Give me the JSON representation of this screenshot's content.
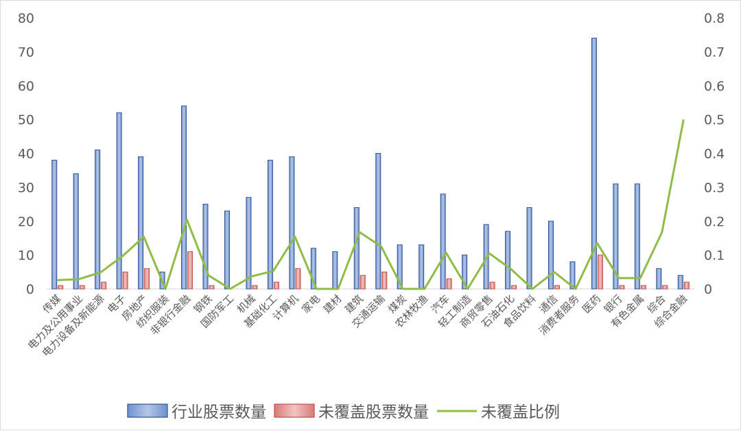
{
  "chart_data": {
    "type": "bar",
    "categories": [
      "传媒",
      "电力及公用事业",
      "电力设备及新能源",
      "电子",
      "房地产",
      "纺织服装",
      "非银行金融",
      "钢铁",
      "国防军工",
      "机械",
      "基础化工",
      "计算机",
      "家电",
      "建材",
      "建筑",
      "交通运输",
      "煤炭",
      "农林牧渔",
      "汽车",
      "轻工制造",
      "商贸零售",
      "石油石化",
      "食品饮料",
      "通信",
      "消费者服务",
      "医药",
      "银行",
      "有色金属",
      "综合",
      "综合金融"
    ],
    "series": [
      {
        "name": "行业股票数量",
        "axis": "left",
        "type": "bar",
        "values": [
          38,
          34,
          41,
          52,
          39,
          5,
          54,
          25,
          23,
          27,
          38,
          39,
          12,
          11,
          24,
          40,
          13,
          13,
          28,
          10,
          19,
          17,
          24,
          20,
          8,
          74,
          31,
          31,
          6,
          4
        ]
      },
      {
        "name": "未覆盖股票数量",
        "axis": "left",
        "type": "bar",
        "values": [
          1,
          1,
          2,
          5,
          6,
          0,
          11,
          1,
          0,
          1,
          2,
          6,
          0,
          0,
          4,
          5,
          0,
          0,
          3,
          0,
          2,
          1,
          0,
          1,
          0,
          10,
          1,
          1,
          1,
          2
        ]
      },
      {
        "name": "未覆盖比例",
        "axis": "right",
        "type": "line",
        "values": [
          0.026,
          0.029,
          0.049,
          0.096,
          0.154,
          0,
          0.204,
          0.04,
          0,
          0.037,
          0.053,
          0.154,
          0,
          0,
          0.167,
          0.125,
          0,
          0,
          0.107,
          0,
          0.105,
          0.059,
          0,
          0.05,
          0,
          0.135,
          0.032,
          0.032,
          0.167,
          0.5
        ]
      }
    ],
    "y_left": {
      "min": 0,
      "max": 80,
      "ticks": [
        "0",
        "10",
        "20",
        "30",
        "40",
        "50",
        "60",
        "70",
        "80"
      ]
    },
    "y_right": {
      "min": 0,
      "max": 0.8,
      "ticks": [
        "0",
        "0.1",
        "0.2",
        "0.3",
        "0.4",
        "0.5",
        "0.6",
        "0.7",
        "0.8"
      ]
    },
    "grid": false,
    "legend_position": "bottom",
    "colors": {
      "bar1_fill": "#8eaadb",
      "bar1_stroke": "#2f528f",
      "bar2_fill": "#e6a3a3",
      "bar2_stroke": "#c0504d",
      "line": "#8fbc45"
    }
  }
}
